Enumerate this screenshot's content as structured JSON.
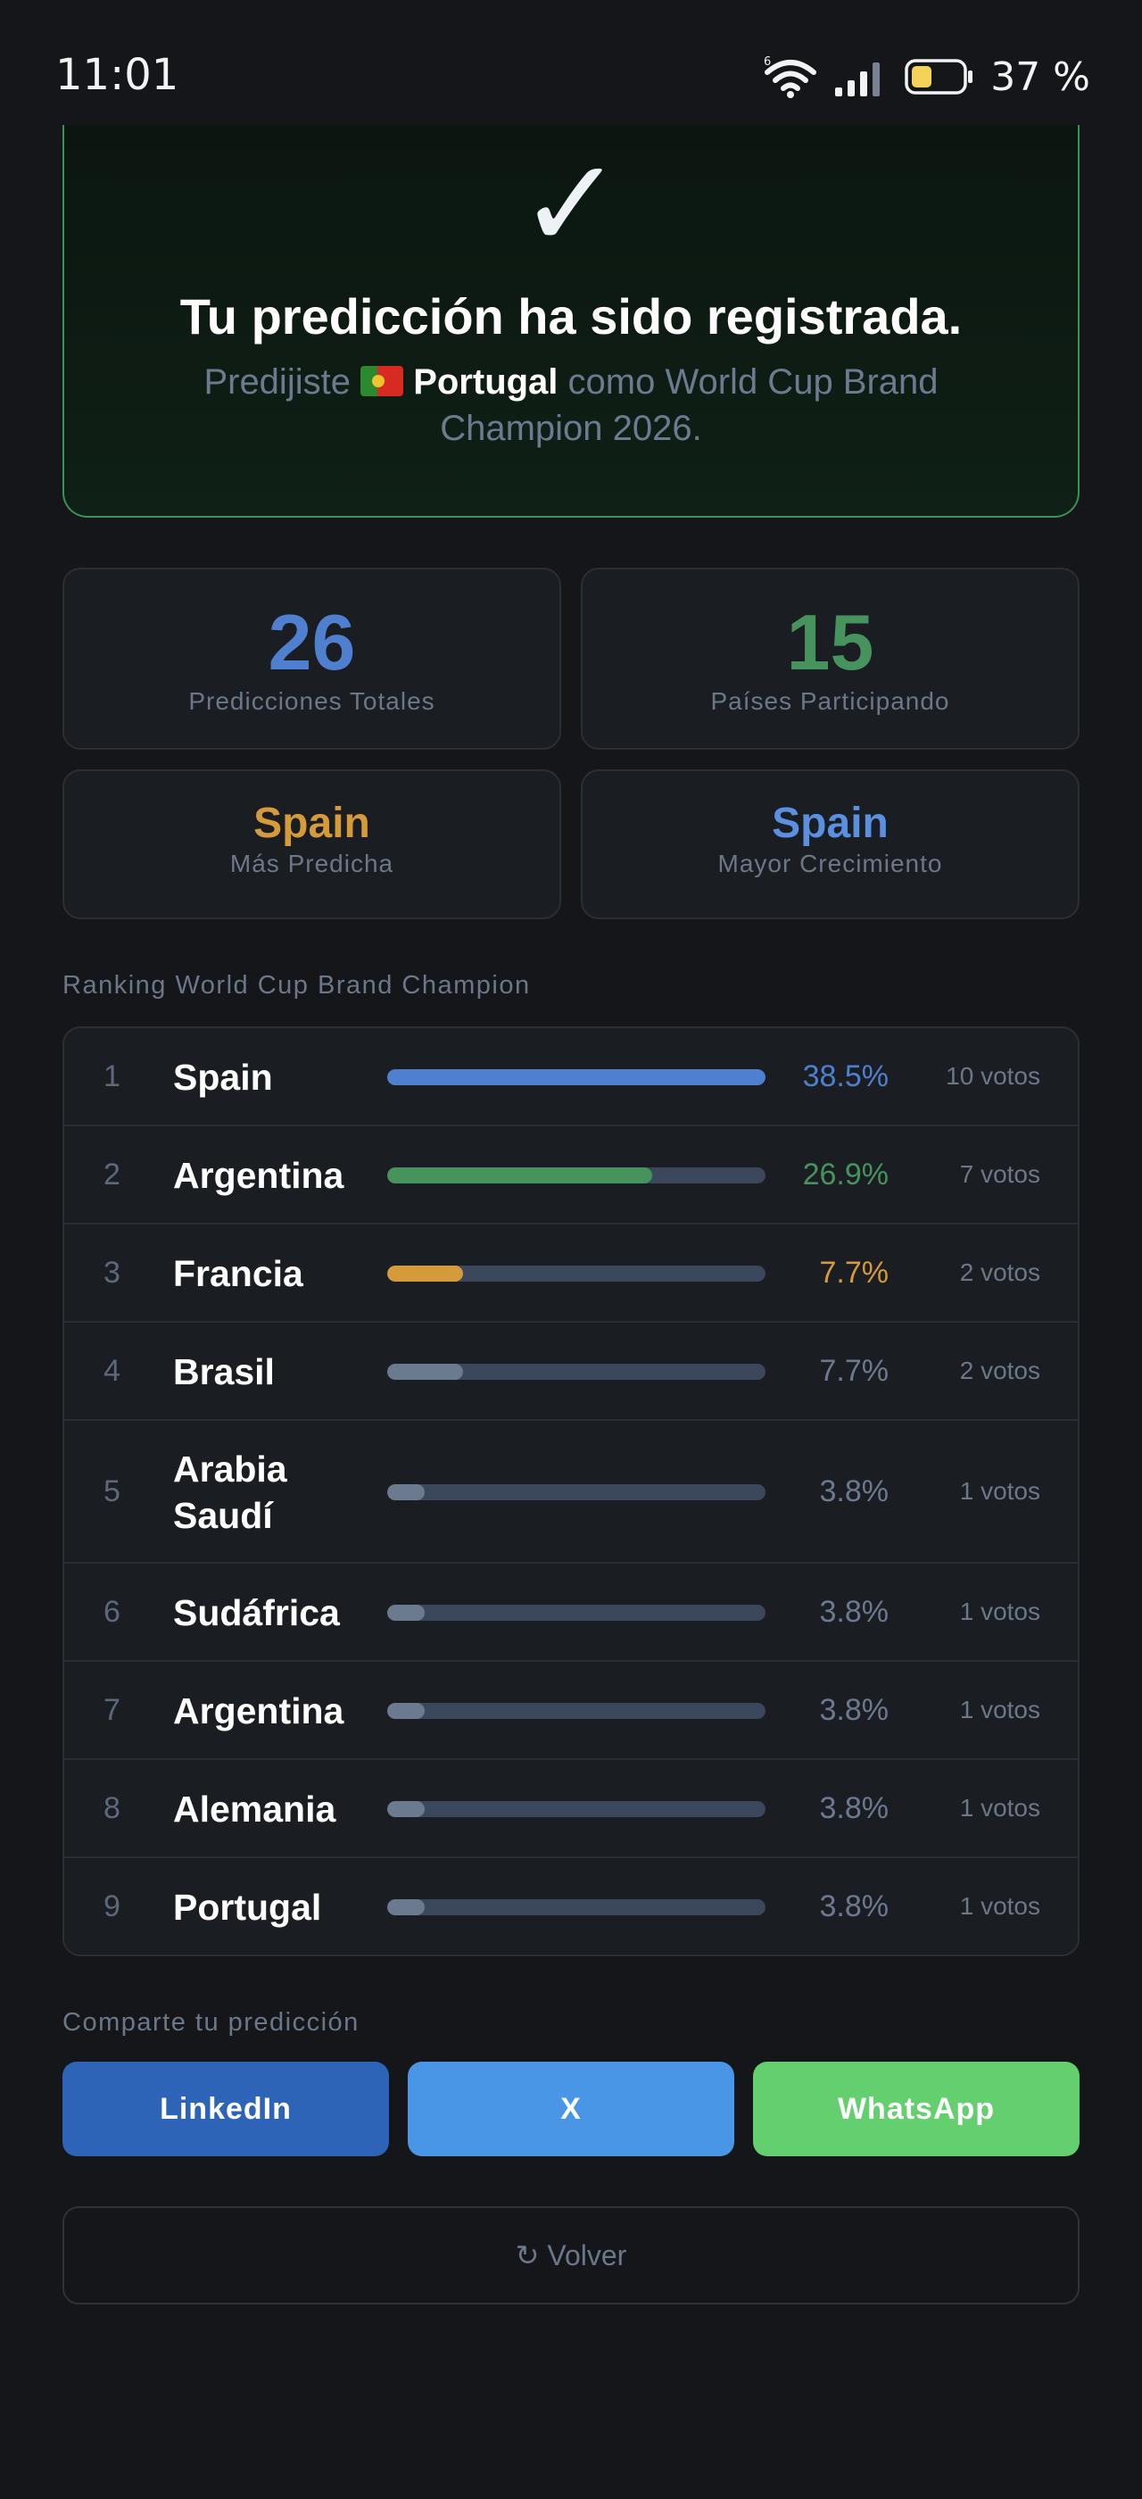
{
  "status_bar": {
    "time": "11:01",
    "battery": "37 %"
  },
  "confirmation": {
    "check": "✓",
    "title": "Tu predicción ha sido registrada.",
    "sub_prefix": "Predijiste ",
    "country": "Portugal",
    "sub_suffix": " como World Cup Brand Champion 2026."
  },
  "stats": [
    {
      "value": "26",
      "label": "Predicciones Totales",
      "color": "#4f7fcf"
    },
    {
      "value": "15",
      "label": "Países Participando",
      "color": "#47935d"
    },
    {
      "value": "Spain",
      "label": "Más Predicha",
      "color": "#d59a3a"
    },
    {
      "value": "Spain",
      "label": "Mayor Crecimiento",
      "color": "#5b8fe0"
    }
  ],
  "ranking": {
    "title": "Ranking World Cup Brand Champion",
    "rows": [
      {
        "rank": "1",
        "name": "Spain",
        "pct": "38.5%",
        "votes": "10 votos",
        "share": 1.0,
        "color": "#4f7fcf"
      },
      {
        "rank": "2",
        "name": "Argentina",
        "pct": "26.9%",
        "votes": "7 votos",
        "share": 0.7,
        "color": "#47935d"
      },
      {
        "rank": "3",
        "name": "Francia",
        "pct": "7.7%",
        "votes": "2 votos",
        "share": 0.2,
        "color": "#d59a3a"
      },
      {
        "rank": "4",
        "name": "Brasil",
        "pct": "7.7%",
        "votes": "2 votos",
        "share": 0.2,
        "color": "#6c7a8f"
      },
      {
        "rank": "5",
        "name": "Arabia Saudí",
        "pct": "3.8%",
        "votes": "1 votos",
        "share": 0.1,
        "color": "#6c7a8f"
      },
      {
        "rank": "6",
        "name": "Sudáfrica",
        "pct": "3.8%",
        "votes": "1 votos",
        "share": 0.1,
        "color": "#6c7a8f"
      },
      {
        "rank": "7",
        "name": "Argentina",
        "pct": "3.8%",
        "votes": "1 votos",
        "share": 0.1,
        "color": "#6c7a8f"
      },
      {
        "rank": "8",
        "name": "Alemania",
        "pct": "3.8%",
        "votes": "1 votos",
        "share": 0.1,
        "color": "#6c7a8f"
      },
      {
        "rank": "9",
        "name": "Portugal",
        "pct": "3.8%",
        "votes": "1 votos",
        "share": 0.1,
        "color": "#6c7a8f"
      }
    ]
  },
  "share": {
    "title": "Comparte tu predicción",
    "buttons": [
      {
        "label": "LinkedIn",
        "color": "#2d64b8"
      },
      {
        "label": "X",
        "color": "#4a96e6"
      },
      {
        "label": "WhatsApp",
        "color": "#63cf6f"
      }
    ]
  },
  "back": {
    "icon": "refresh-icon",
    "label": "↻ Volver"
  }
}
